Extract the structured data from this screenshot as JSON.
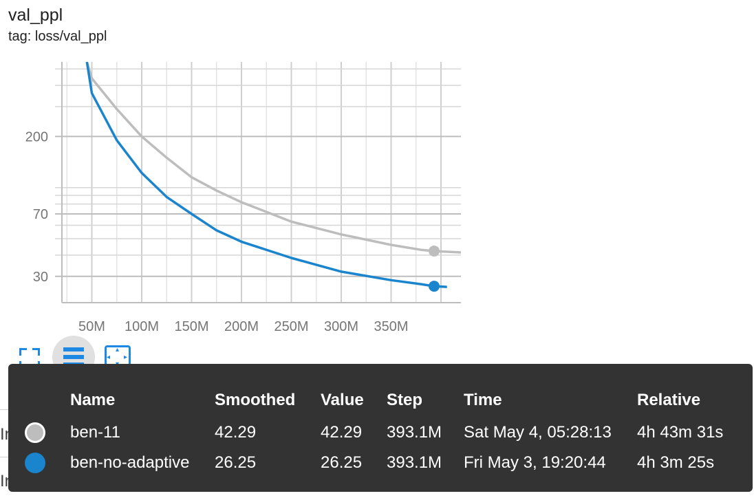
{
  "card": {
    "title": "val_ppl",
    "subtitle": "tag: loss/val_ppl"
  },
  "toolbar": {
    "expand_icon": "fullscreen-icon",
    "log_toggle_icon": "menu-lines-icon",
    "fit_icon": "fit-domain-icon"
  },
  "background_rows": [
    "In",
    "In"
  ],
  "tooltip": {
    "headers": [
      "Name",
      "Smoothed",
      "Value",
      "Step",
      "Time",
      "Relative"
    ],
    "rows": [
      {
        "name": "ben-11",
        "smoothed": "42.29",
        "value": "42.29",
        "step": "393.1M",
        "time": "Sat May 4, 05:28:13",
        "relative": "4h 43m 31s",
        "color": "#bdbdbd"
      },
      {
        "name": "ben-no-adaptive",
        "smoothed": "26.25",
        "value": "26.25",
        "step": "393.1M",
        "time": "Fri May 3, 19:20:44",
        "relative": "4h 3m 25s",
        "color": "#1a84cc"
      }
    ]
  },
  "chart_data": {
    "type": "line",
    "title": "val_ppl",
    "subtitle": "tag: loss/val_ppl",
    "xlabel": "",
    "ylabel": "",
    "y_scale": "log",
    "xlim": [
      20,
      420
    ],
    "ylim": [
      21,
      550
    ],
    "x_ticks": [
      50,
      100,
      150,
      200,
      250,
      300,
      350
    ],
    "x_tick_labels": [
      "50M",
      "100M",
      "150M",
      "200M",
      "250M",
      "300M",
      "350M"
    ],
    "y_ticks": [
      30,
      70,
      200
    ],
    "y_tick_labels": [
      "30",
      "70",
      "200"
    ],
    "grid": true,
    "legend": "none",
    "series": [
      {
        "name": "ben-11",
        "color": "#bdbdbd",
        "x": [
          45,
          50,
          75,
          100,
          125,
          150,
          175,
          200,
          250,
          300,
          350,
          380,
          393.1,
          420
        ],
        "y": [
          550,
          440,
          290,
          200,
          150,
          115,
          96,
          82,
          63,
          53,
          46,
          43,
          42.29,
          41.5
        ],
        "highlight_x": 393.1,
        "highlight_y": 42.29
      },
      {
        "name": "ben-no-adaptive",
        "color": "#1a84cc",
        "x": [
          45,
          50,
          75,
          100,
          125,
          150,
          175,
          200,
          250,
          300,
          350,
          380,
          393.1,
          406
        ],
        "y": [
          550,
          360,
          190,
          122,
          88,
          70,
          56,
          48,
          38.5,
          32,
          28.5,
          27,
          26.25,
          26
        ],
        "highlight_x": 393.1,
        "highlight_y": 26.25
      }
    ]
  }
}
